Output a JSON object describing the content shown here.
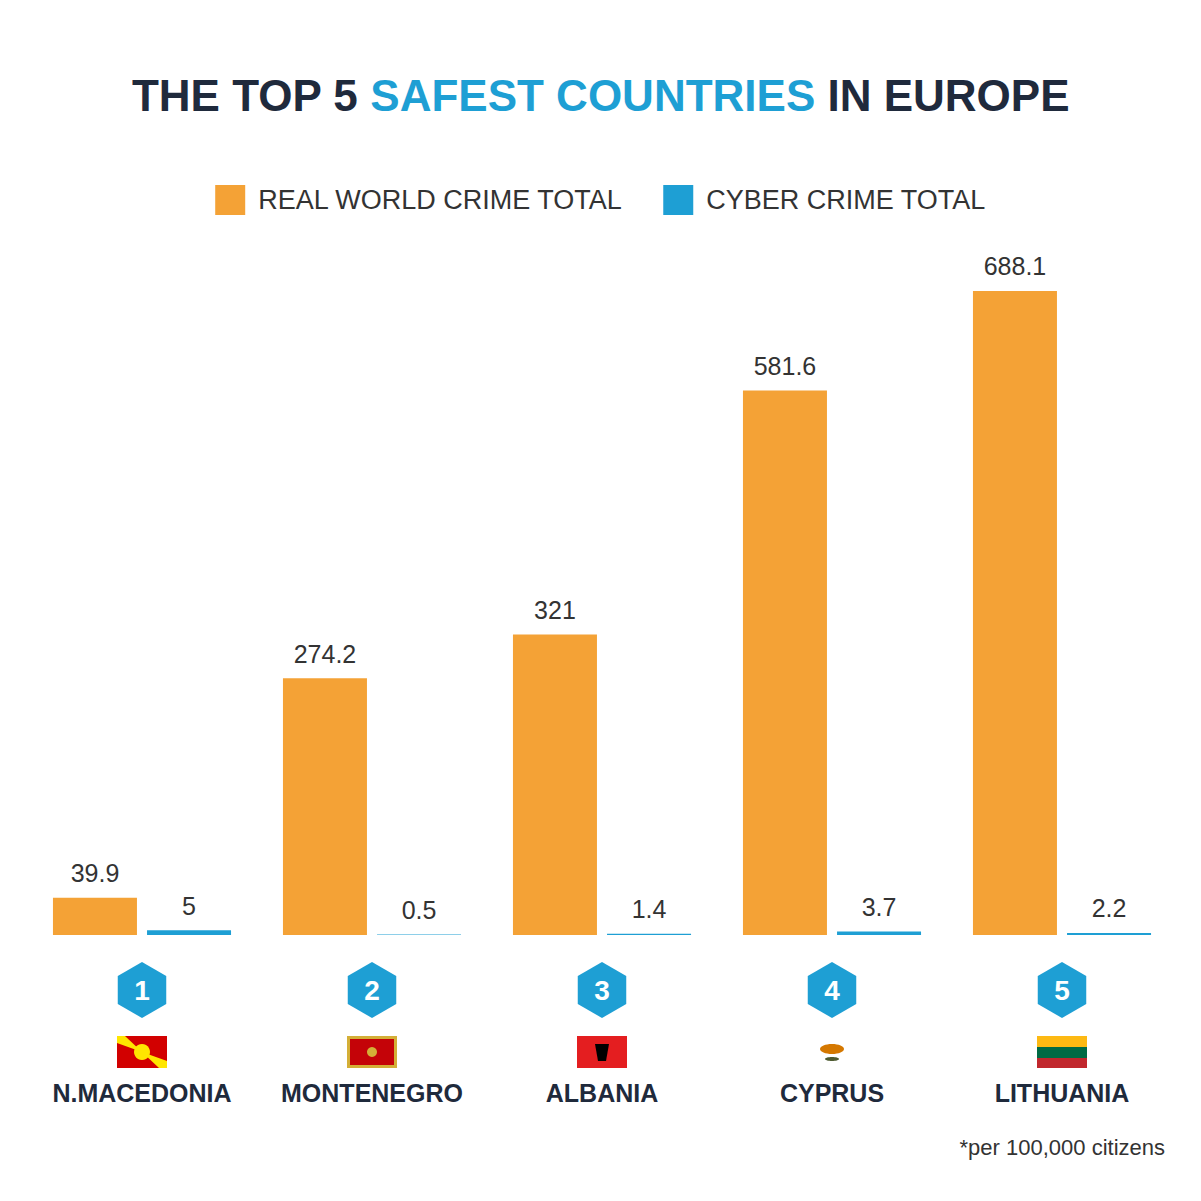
{
  "chart_data": {
    "type": "bar",
    "title": "THE TOP 5 SAFEST COUNTRIES IN EUROPE",
    "title_highlight": "SAFEST COUNTRIES",
    "categories": [
      "N.MACEDONIA",
      "MONTENEGRO",
      "ALBANIA",
      "CYPRUS",
      "LITHUANIA"
    ],
    "ranks": [
      1,
      2,
      3,
      4,
      5
    ],
    "series": [
      {
        "name": "REAL WORLD CRIME TOTAL",
        "color": "#f4a236",
        "values": [
          39.9,
          274.2,
          321,
          581.6,
          688.1
        ]
      },
      {
        "name": "CYBER CRIME TOTAL",
        "color": "#1e9fd4",
        "values": [
          5,
          0.5,
          1.4,
          3.7,
          2.2
        ]
      }
    ],
    "footnote": "*per 100,000 citizens",
    "ylim": [
      0,
      750
    ],
    "data_labels": true,
    "tick_labels": false,
    "grid": false,
    "legend": "top"
  }
}
